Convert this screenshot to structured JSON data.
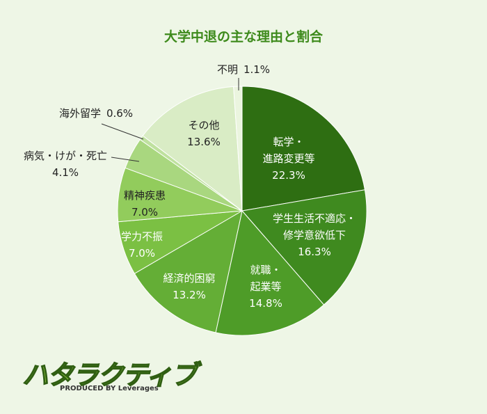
{
  "chart_data": {
    "type": "pie",
    "title": "大学中退の主な理由と割合",
    "categories": [
      "転学・\n進路変更等",
      "学生生活不適応・\n修学意欲低下",
      "就職・\n起業等",
      "経済的困窮",
      "学力不振",
      "精神疾患",
      "病気・けが・死亡",
      "海外留学",
      "その他",
      "不明"
    ],
    "values": [
      22.3,
      16.3,
      14.8,
      13.2,
      7.0,
      7.0,
      4.1,
      0.6,
      13.6,
      1.1
    ],
    "value_labels": [
      "22.3%",
      "16.3%",
      "14.8%",
      "13.2%",
      "7.0%",
      "7.0%",
      "4.1%",
      "0.6%",
      "13.6%",
      "1.1%"
    ],
    "colors": [
      "#2e6e12",
      "#3f8a1f",
      "#4e9c28",
      "#64ae36",
      "#7bc043",
      "#92cc5c",
      "#a9d77f",
      "#bfe19f",
      "#d9ecc5",
      "#ebf5df"
    ]
  },
  "logo": {
    "name": "ハタラクティブ",
    "produced_by": "PRODUCED BY Leverages"
  }
}
